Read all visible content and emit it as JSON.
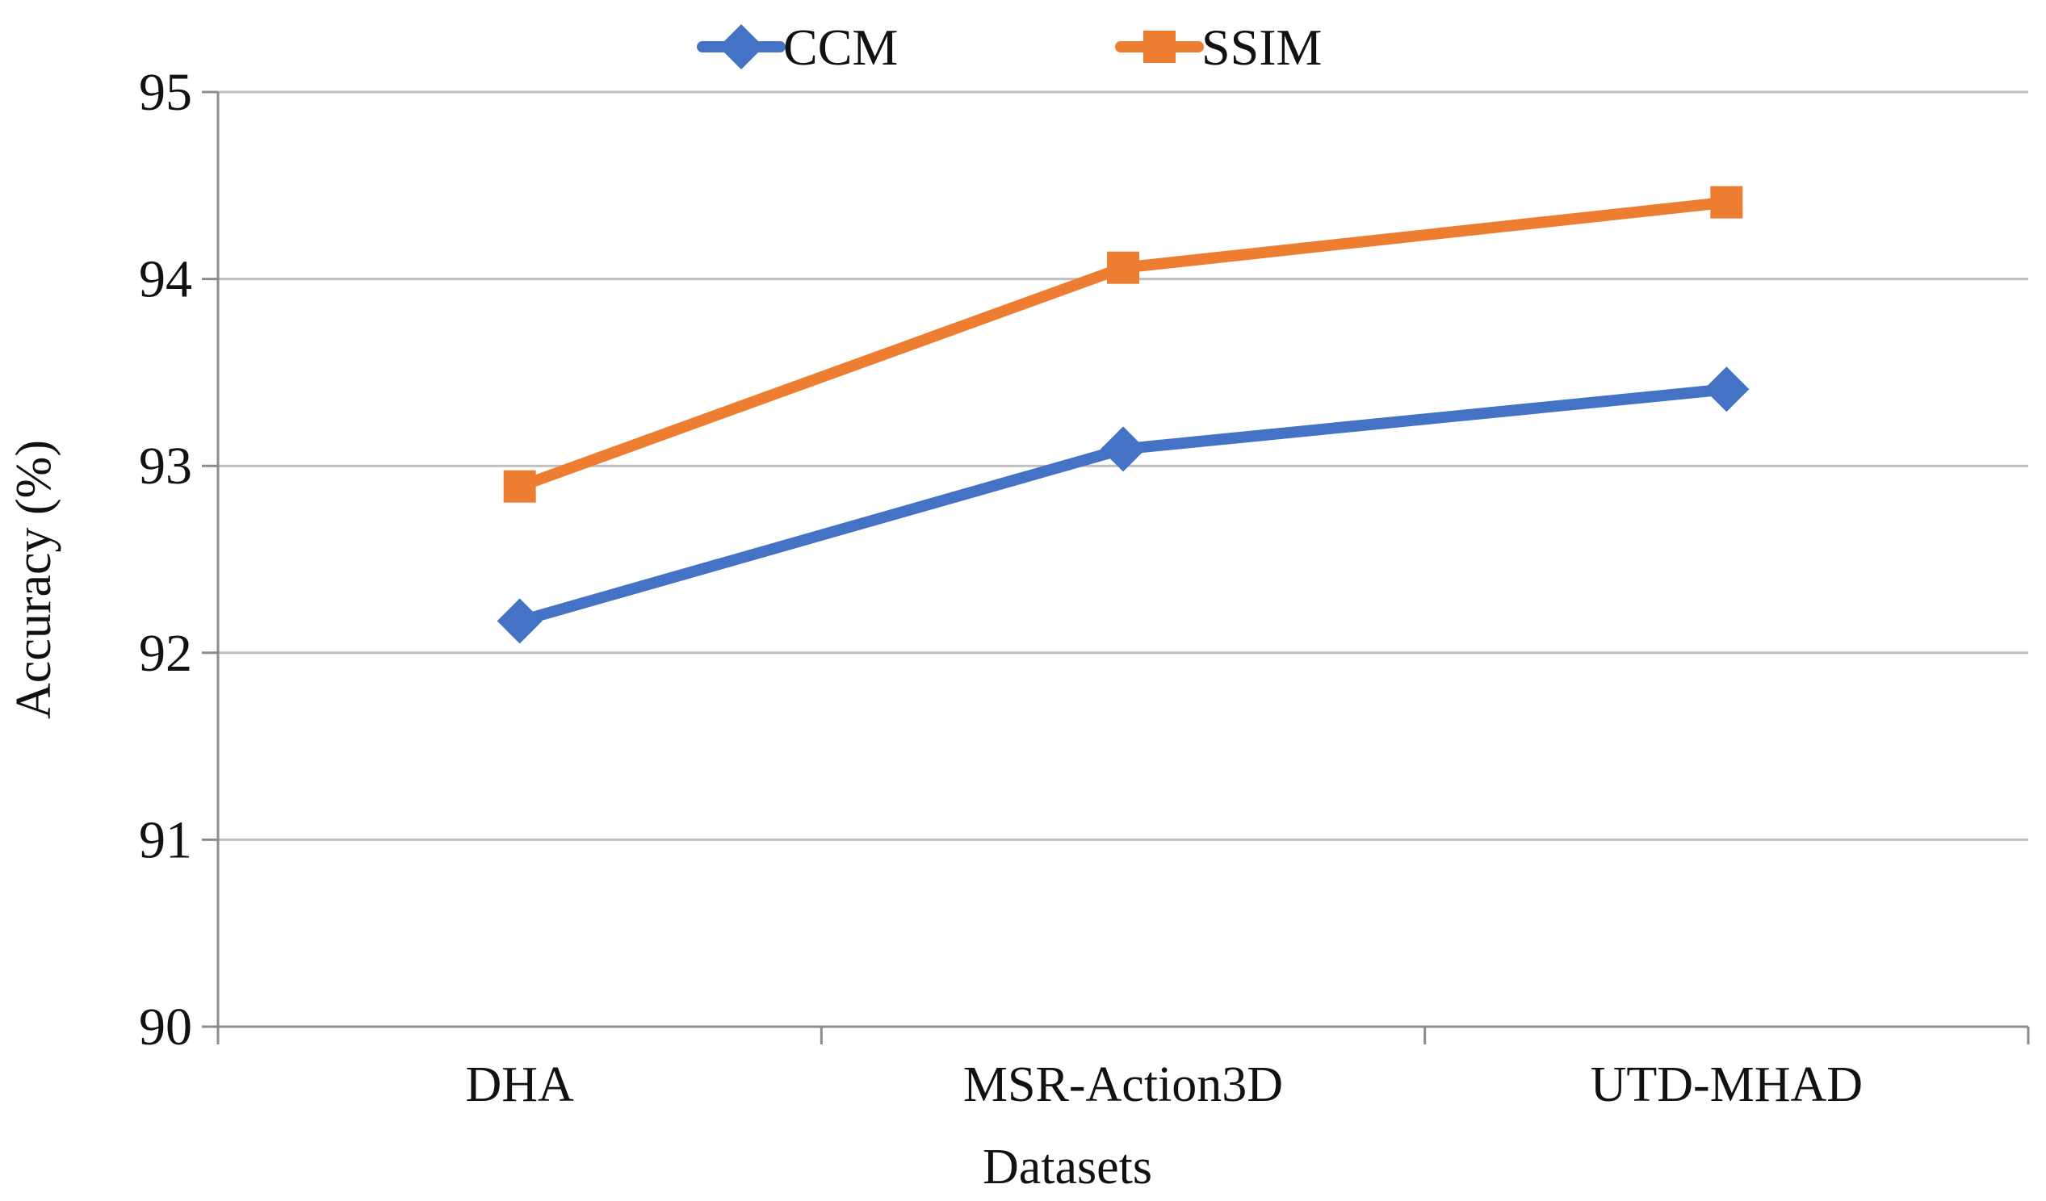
{
  "chart_data": {
    "type": "line",
    "title": "",
    "xlabel": "Datasets",
    "ylabel": "Accuracy (%)",
    "categories": [
      "DHA",
      "MSR-Action3D",
      "UTD-MHAD"
    ],
    "ylim": [
      90,
      95
    ],
    "yticks": [
      90,
      91,
      92,
      93,
      94,
      95
    ],
    "grid": true,
    "legend_position": "top-center",
    "series": [
      {
        "name": "CCM",
        "values": [
          92.17,
          93.09,
          93.41
        ],
        "color": "#4472C4",
        "marker": "diamond"
      },
      {
        "name": "SSIM",
        "values": [
          92.89,
          94.06,
          94.41
        ],
        "color": "#ED7D31",
        "marker": "square"
      }
    ]
  }
}
